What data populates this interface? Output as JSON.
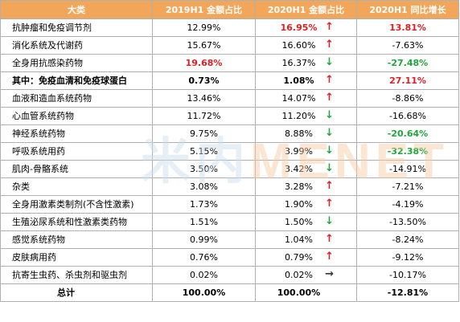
{
  "header": {
    "col1": "大类",
    "col2": "2019H1 金额占比",
    "col3": "2020H1 金额占比",
    "col4": "2020H1 同比增长"
  },
  "rows": [
    {
      "cat": "抗肿瘤和免疫调节剂",
      "v2019": "12.99%",
      "v2020": "16.95%",
      "arrow": "↑",
      "growth": "13.81%"
    },
    {
      "cat": "消化系统及代谢药",
      "v2019": "15.67%",
      "v2020": "16.60%",
      "arrow": "↑",
      "growth": "-7.63%"
    },
    {
      "cat": "全身用抗感染药物",
      "v2019": "19.68%",
      "v2020": "16.37%",
      "arrow": "↓",
      "growth": "-27.48%"
    },
    {
      "cat": "其中：免疫血清和免疫球蛋白",
      "v2019": "0.73%",
      "v2020": "1.08%",
      "arrow": "↑",
      "growth": "27.11%"
    },
    {
      "cat": "血液和造血系统药物",
      "v2019": "13.46%",
      "v2020": "14.07%",
      "arrow": "↑",
      "growth": "-8.86%"
    },
    {
      "cat": "心血管系统药物",
      "v2019": "11.72%",
      "v2020": "11.20%",
      "arrow": "↓",
      "growth": "-16.68%"
    },
    {
      "cat": "神经系统药物",
      "v2019": "9.75%",
      "v2020": "8.88%",
      "arrow": "↓",
      "growth": "-20.64%"
    },
    {
      "cat": "呼吸系统用药",
      "v2019": "5.15%",
      "v2020": "3.99%",
      "arrow": "↓",
      "growth": "-32.38%"
    },
    {
      "cat": "肌肉-骨骼系统",
      "v2019": "3.50%",
      "v2020": "3.42%",
      "arrow": "↓",
      "growth": "-14.91%"
    },
    {
      "cat": "杂类",
      "v2019": "3.08%",
      "v2020": "3.28%",
      "arrow": "↑",
      "growth": "-7.21%"
    },
    {
      "cat": "全身用激素类制剂(不含性激素)",
      "v2019": "1.73%",
      "v2020": "1.90%",
      "arrow": "↑",
      "growth": "-4.19%"
    },
    {
      "cat": "生殖泌尿系统和性激素类药物",
      "v2019": "1.51%",
      "v2020": "1.50%",
      "arrow": "↓",
      "growth": "-13.50%"
    },
    {
      "cat": "感觉系统药物",
      "v2019": "0.99%",
      "v2020": "1.04%",
      "arrow": "↑",
      "growth": "-8.24%"
    },
    {
      "cat": "皮肤病用药",
      "v2019": "0.76%",
      "v2020": "0.79%",
      "arrow": "↑",
      "growth": "-9.12%"
    },
    {
      "cat": "抗寄生虫药、杀虫剂和驱虫剂",
      "v2019": "0.02%",
      "v2020": "0.02%",
      "arrow": "→",
      "growth": "-10.17%"
    },
    {
      "cat": "总计",
      "v2019": "100.00%",
      "v2020": "100.00%",
      "arrow": "",
      "growth": "-12.81%"
    }
  ],
  "watermark": {
    "part1": "米内",
    "part2": "MENET"
  },
  "colors": {
    "header_bg": "#f2a65a",
    "up": "#e02020",
    "down": "#22a63a"
  }
}
